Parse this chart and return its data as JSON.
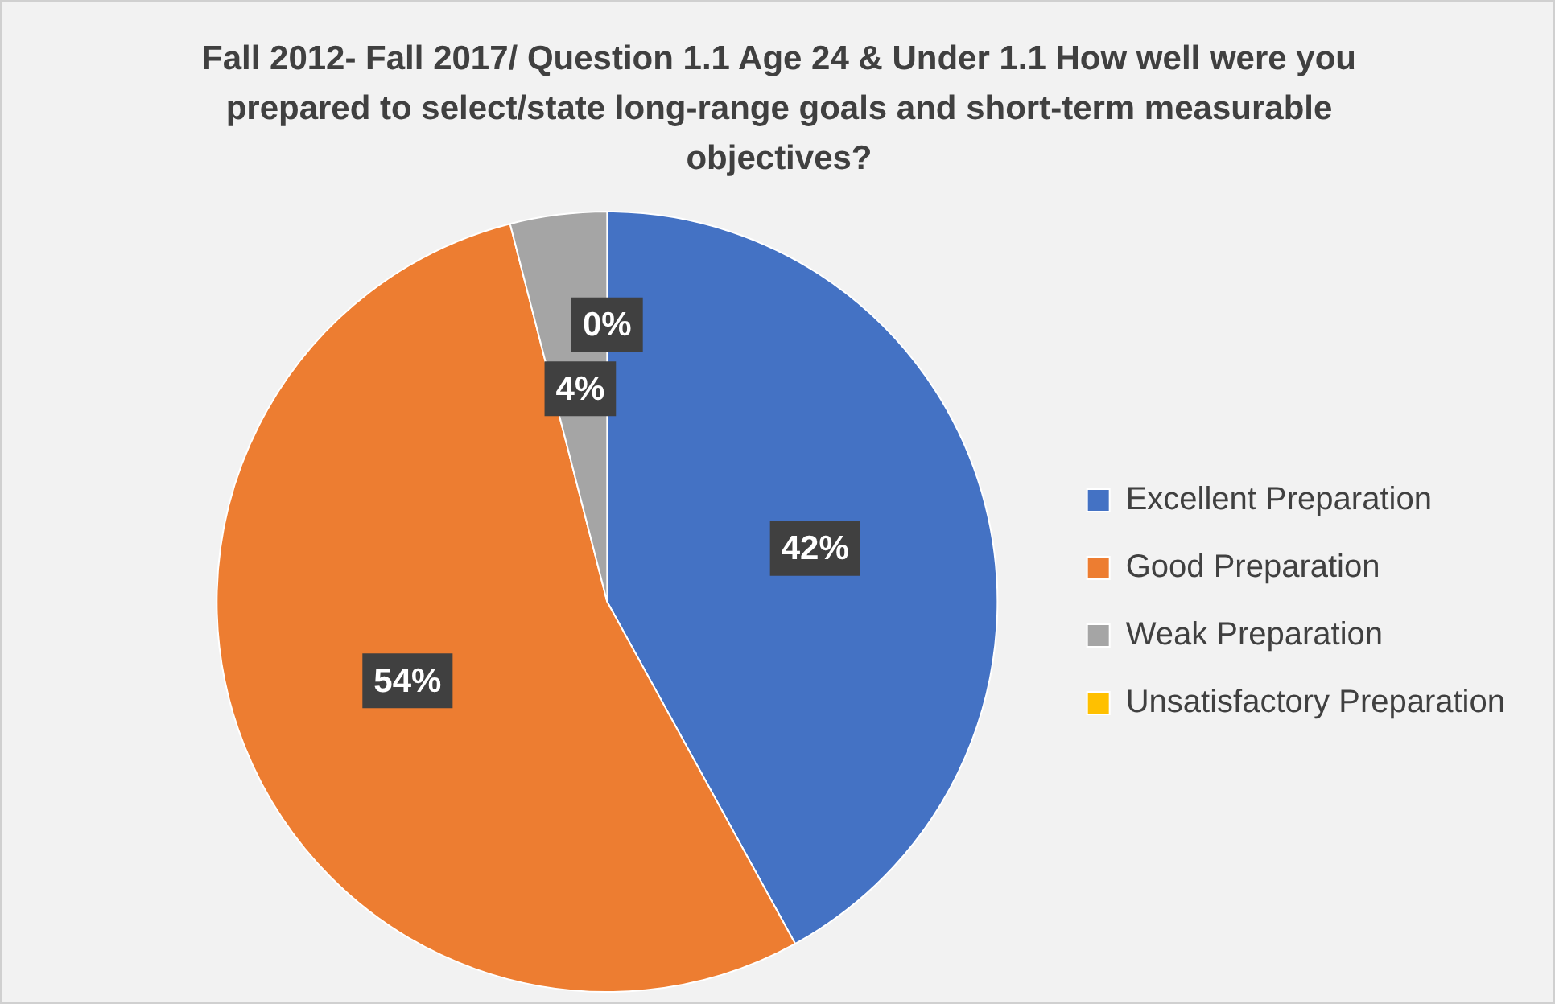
{
  "chart_data": {
    "type": "pie",
    "title": "Fall 2012- Fall 2017/ Question 1.1 Age 24 & Under 1.1 How well were you prepared to select/state long-range goals and short-term measurable objectives?",
    "categories": [
      "Excellent Preparation",
      "Good Preparation",
      "Weak Preparation",
      "Unsatisfactory Preparation"
    ],
    "values": [
      42,
      54,
      4,
      0
    ],
    "colors": [
      "#4472c4",
      "#ed7d31",
      "#a5a5a5",
      "#ffc000"
    ],
    "value_labels": [
      "42%",
      "54%",
      "4%",
      "0%"
    ],
    "legend": "right"
  }
}
